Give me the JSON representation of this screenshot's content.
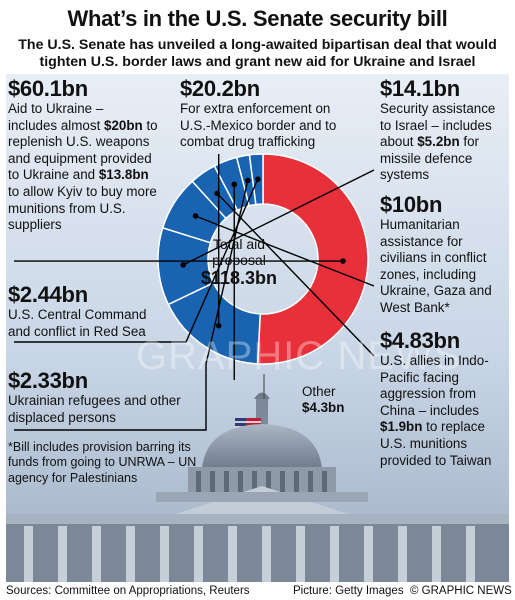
{
  "header": {
    "title": "What’s in the U.S. Senate security bill",
    "subtitle": "The U.S. Senate has unveiled a long-awaited bipartisan deal that would tighten U.S. border laws and grant new aid for Ukraine and Israel"
  },
  "chart_data": {
    "type": "pie",
    "subtype": "donut",
    "center_label": "Total aid proposal",
    "center_value": "$118.3bn",
    "slices": [
      {
        "key": "ukraine",
        "amount": "$60.1bn",
        "value": 60.1,
        "color": "#e8303a",
        "segments": [
          "Aid to Ukraine –",
          "includes almost ",
          "$20bn",
          " to replenish U.S. weapons and equipment provided to Ukraine and ",
          "$13.8bn",
          " to allow Kyiv to buy more munitions from U.S. suppliers"
        ]
      },
      {
        "key": "border",
        "amount": "$20.2bn",
        "value": 20.2,
        "color": "#1a63b0",
        "segments": [
          "For extra enforcement on U.S.-Mexico border and to combat drug trafficking"
        ]
      },
      {
        "key": "israel",
        "amount": "$14.1bn",
        "value": 14.1,
        "color": "#1a63b0",
        "segments": [
          "Security assistance to Israel – includes about ",
          "$5.2bn",
          " for missile defence systems"
        ]
      },
      {
        "key": "humanitarian",
        "amount": "$10bn",
        "value": 10.0,
        "color": "#1a63b0",
        "segments": [
          "Humanitarian assistance for civilians in conflict zones, including Ukraine, Gaza and West Bank*"
        ]
      },
      {
        "key": "indopacific",
        "amount": "$4.83bn",
        "value": 4.83,
        "color": "#1a63b0",
        "segments": [
          "U.S. allies in Indo-Pacific facing aggression from China – includes ",
          "$1.9bn",
          " to replace U.S. munitions provided to Taiwan"
        ]
      },
      {
        "key": "other",
        "label": "Other",
        "amount": "$4.3bn",
        "value": 4.3,
        "color": "#1a63b0"
      },
      {
        "key": "refugees",
        "amount": "$2.33bn",
        "value": 2.33,
        "color": "#1a63b0",
        "segments": [
          "Ukrainian refugees and other displaced persons"
        ]
      },
      {
        "key": "centcom",
        "amount": "$2.44bn",
        "value": 2.44,
        "color": "#1a63b0",
        "segments": [
          "U.S. Central Command and conflict in Red Sea"
        ]
      }
    ]
  },
  "footnote": "*Bill includes provision barring its funds from going to UNRWA – UN agency for Palestinians",
  "watermark": "GRAPHIC NEWS",
  "footer": {
    "sources": "Sources: Committee on Appropriations, Reuters",
    "picture": "Picture: Getty Images",
    "credit": "© GRAPHIC NEWS"
  }
}
